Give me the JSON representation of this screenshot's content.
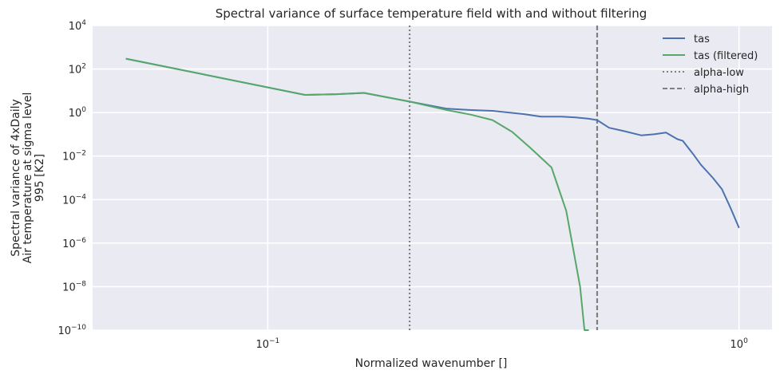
{
  "chart_data": {
    "type": "line",
    "title": "Spectral variance of surface temperature field with and without filtering",
    "xlabel": "Normalized wavenumber []",
    "ylabel": [
      "Spectral variance of 4xDaily",
      "Air temperature at sigma level",
      "995 [K2]"
    ],
    "xscale": "log",
    "yscale": "log",
    "xlim": [
      0.0425,
      1.175
    ],
    "ylim": [
      1e-10,
      10000
    ],
    "grid": true,
    "legend_position": "top-right",
    "x_ticks": [
      {
        "value": 0.1,
        "base": "10",
        "exp": "−1"
      },
      {
        "value": 1,
        "base": "10",
        "exp": "0"
      }
    ],
    "y_ticks": [
      {
        "value": 10000,
        "base": "10",
        "exp": "4"
      },
      {
        "value": 100,
        "base": "10",
        "exp": "2"
      },
      {
        "value": 1,
        "base": "10",
        "exp": "0"
      },
      {
        "value": 0.01,
        "base": "10",
        "exp": "−2"
      },
      {
        "value": 0.0001,
        "base": "10",
        "exp": "−4"
      },
      {
        "value": 1e-06,
        "base": "10",
        "exp": "−6"
      },
      {
        "value": 1e-08,
        "base": "10",
        "exp": "−8"
      },
      {
        "value": 1e-10,
        "base": "10",
        "exp": "−10"
      }
    ],
    "series": [
      {
        "name": "tas",
        "color": "#4c72b0",
        "style": "solid",
        "x": [
          0.05,
          0.12,
          0.14,
          0.16,
          0.2,
          0.24,
          0.27,
          0.3,
          0.35,
          0.38,
          0.42,
          0.45,
          0.48,
          0.5,
          0.53,
          0.57,
          0.62,
          0.66,
          0.7,
          0.74,
          0.76,
          0.8,
          0.83,
          0.88,
          0.92,
          0.96,
          1.0
        ],
        "y": [
          300,
          6.5,
          7,
          8,
          3.2,
          1.5,
          1.3,
          1.2,
          0.85,
          0.65,
          0.65,
          0.6,
          0.52,
          0.45,
          0.2,
          0.14,
          0.09,
          0.1,
          0.12,
          0.06,
          0.05,
          0.012,
          0.004,
          0.001,
          0.0003,
          4e-05,
          5e-06
        ]
      },
      {
        "name": "tas (filtered)",
        "color": "#55a868",
        "style": "solid",
        "x": [
          0.05,
          0.12,
          0.14,
          0.16,
          0.2,
          0.24,
          0.27,
          0.3,
          0.33,
          0.36,
          0.4,
          0.43,
          0.46,
          0.47,
          0.48
        ],
        "y": [
          300,
          6.5,
          7,
          8,
          3.2,
          1.3,
          0.8,
          0.45,
          0.13,
          0.025,
          0.003,
          3e-05,
          1e-08,
          1e-10,
          1e-10
        ]
      },
      {
        "name": "alpha-low",
        "color": "#808080",
        "style": "dotted",
        "vline": 0.2
      },
      {
        "name": "alpha-high",
        "color": "#808080",
        "style": "dashed",
        "vline": 0.5
      }
    ]
  }
}
